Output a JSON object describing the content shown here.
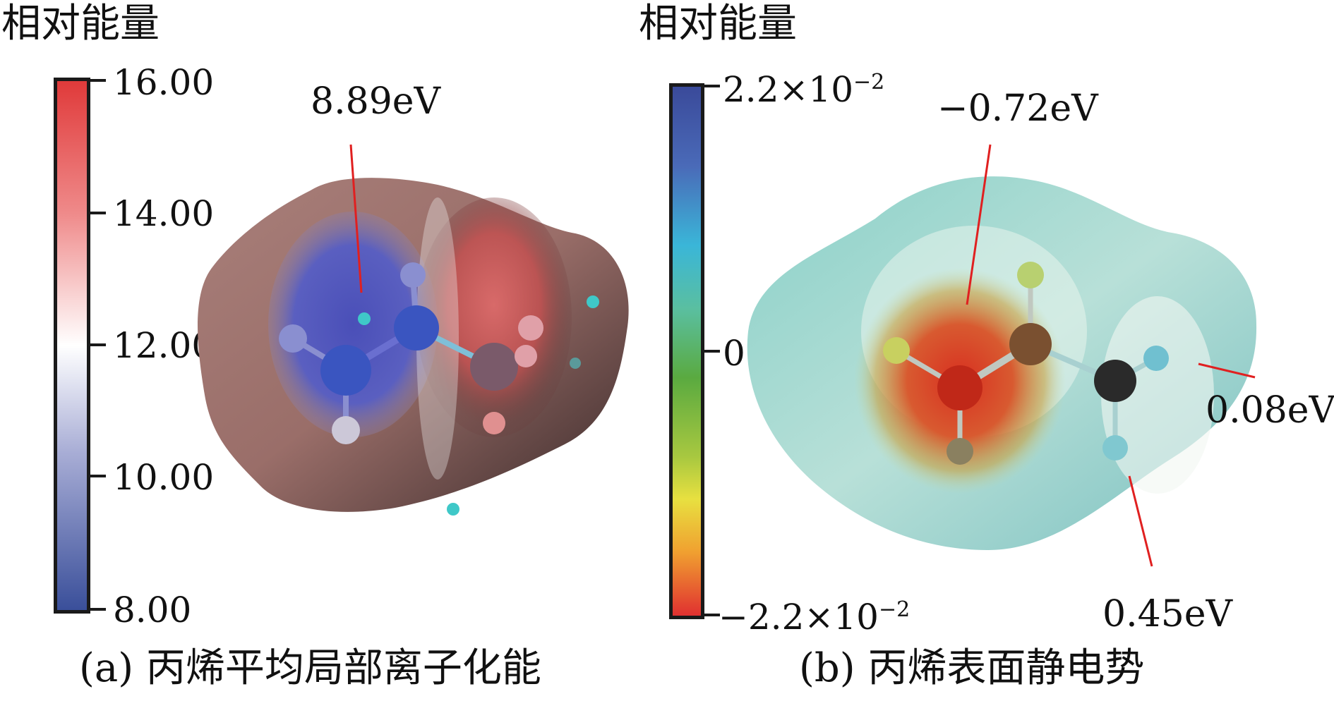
{
  "panel_a": {
    "legend_title": "相对能量",
    "ticks": [
      "16.00",
      "14.00",
      "12.00",
      "10.00",
      "8.00"
    ],
    "annotation": "8.89eV",
    "caption": "(a) 丙烯平均局部离子化能",
    "colors": {
      "high": "#e03a3a",
      "mid": "#ffffff",
      "low": "#3a4f9a"
    }
  },
  "panel_b": {
    "legend_title": "相对能量",
    "ticks": {
      "top": "2.2×10",
      "top_exp": "−2",
      "mid": "0",
      "bottom": "−2.2×10",
      "bottom_exp": "−2"
    },
    "annotations": [
      "−0.72eV",
      "0.08eV",
      "0.45eV"
    ],
    "caption": "(b) 丙烯表面静电势",
    "colors": {
      "top": "#3a4a9a",
      "cyan": "#3ab6d8",
      "green": "#5aaa40",
      "yellow": "#e8e040",
      "bottom": "#e03030"
    }
  }
}
